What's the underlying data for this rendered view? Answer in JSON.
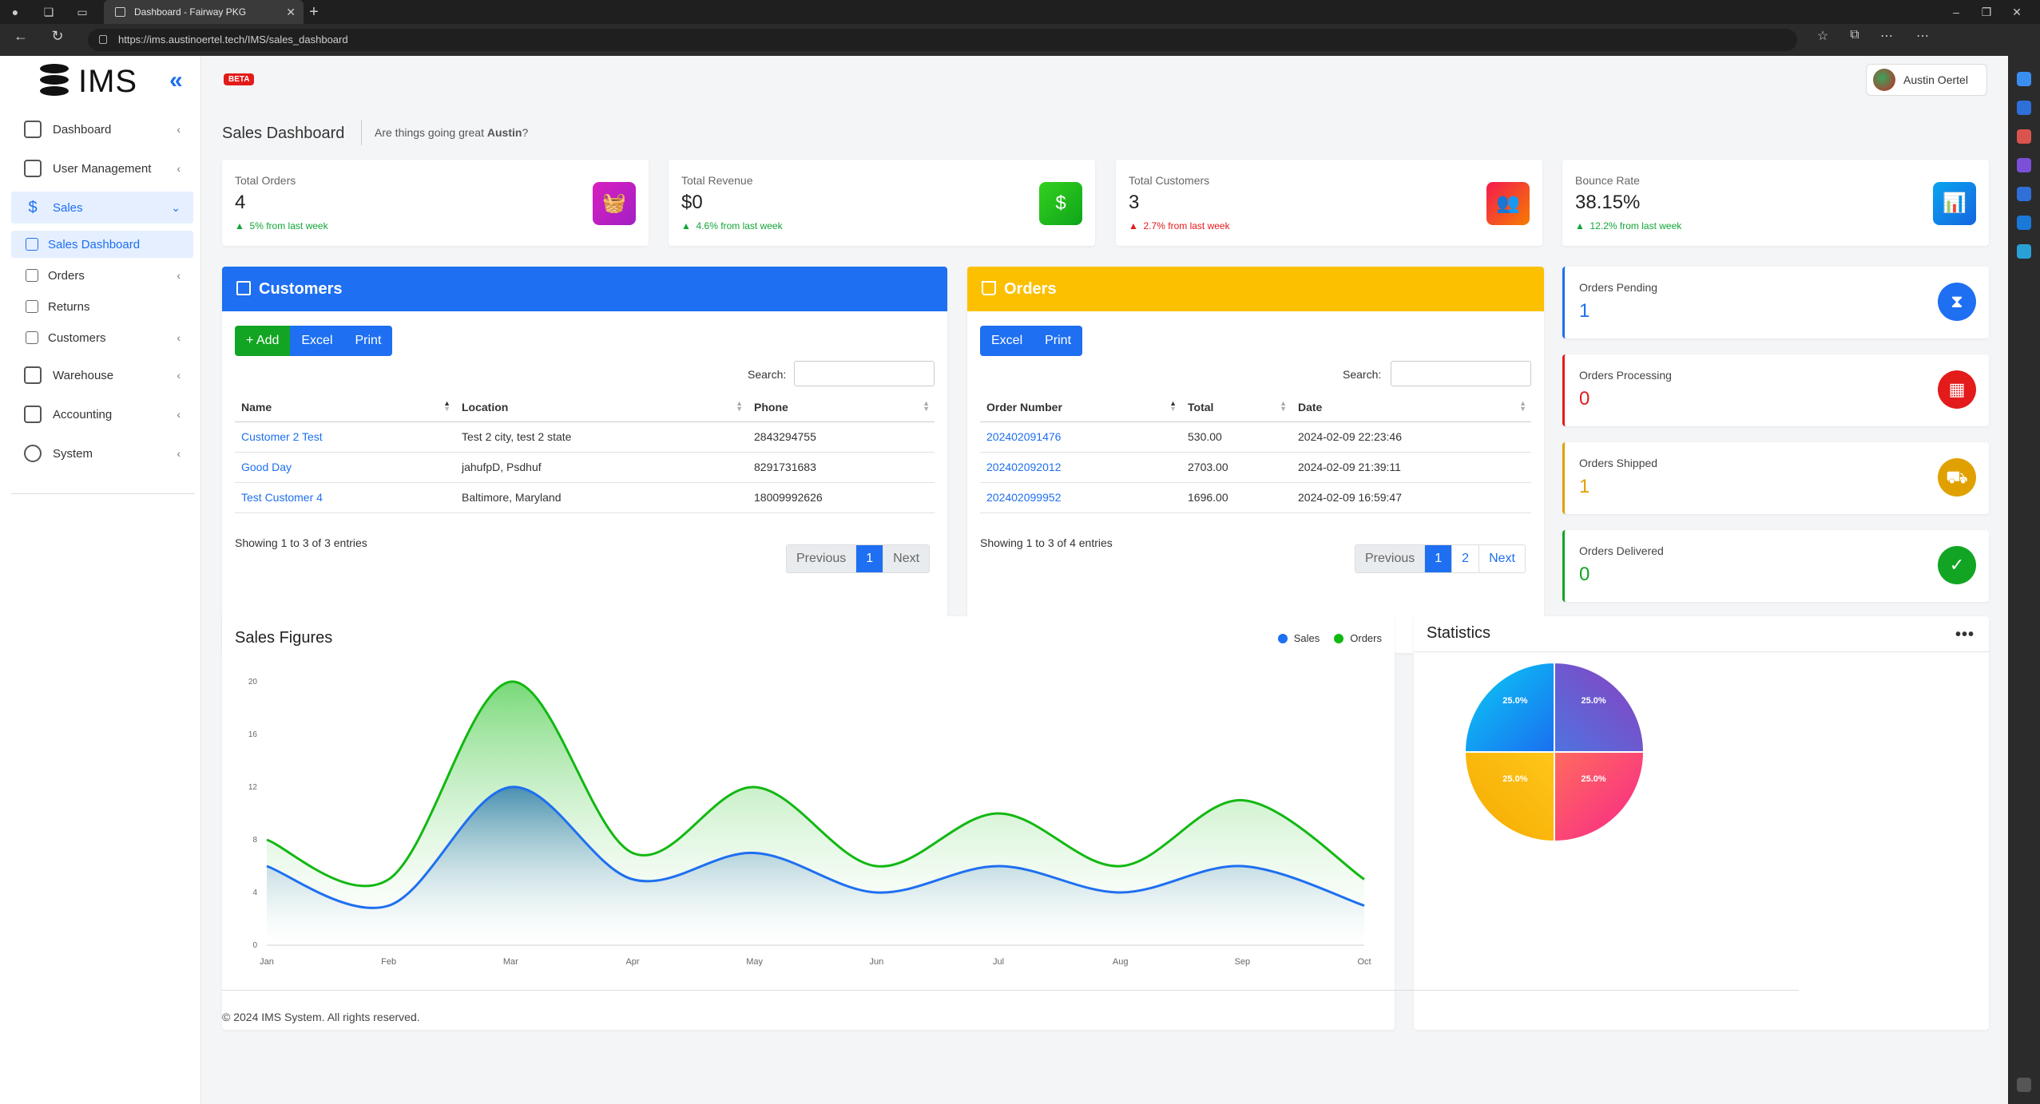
{
  "browser": {
    "tab_title": "Dashboard - Fairway PKG",
    "url": "https://ims.austinoertel.tech/IMS/sales_dashboard"
  },
  "app": {
    "logo": "IMS",
    "beta": "BETA",
    "user_name": "Austin Oertel"
  },
  "sidebar": {
    "items": [
      {
        "label": "Dashboard",
        "icon": "home-icon"
      },
      {
        "label": "User Management",
        "icon": "users-icon"
      },
      {
        "label": "Sales",
        "icon": "dollar-icon"
      },
      {
        "label": "Warehouse",
        "icon": "warehouse-icon"
      },
      {
        "label": "Accounting",
        "icon": "calculator-icon"
      },
      {
        "label": "System",
        "icon": "gear-icon"
      }
    ],
    "sales_sub": [
      {
        "label": "Sales Dashboard"
      },
      {
        "label": "Orders"
      },
      {
        "label": "Returns"
      },
      {
        "label": "Customers"
      }
    ]
  },
  "header": {
    "title": "Sales Dashboard",
    "greeting_prefix": "Are things going great ",
    "greeting_name": "Austin",
    "greeting_suffix": "?"
  },
  "stats": [
    {
      "label": "Total Orders",
      "value": "4",
      "change": "5% from last week",
      "trend": "up",
      "color": "#c21fb8",
      "icon": "basket-icon"
    },
    {
      "label": "Total Revenue",
      "value": "$0",
      "change": "4.6% from last week",
      "trend": "up",
      "color": "#1dbb1d",
      "icon": "money-icon"
    },
    {
      "label": "Total Customers",
      "value": "3",
      "change": "2.7% from last week",
      "trend": "up-red",
      "color": "#f5243c",
      "icon": "people-icon"
    },
    {
      "label": "Bounce Rate",
      "value": "38.15%",
      "change": "12.2% from last week",
      "trend": "up",
      "color": "#0d8dec",
      "icon": "bar-chart-icon"
    }
  ],
  "customers": {
    "title": "Customers",
    "buttons": {
      "add": "+ Add",
      "excel": "Excel",
      "print": "Print"
    },
    "search_label": "Search:",
    "columns": [
      "Name",
      "Location",
      "Phone"
    ],
    "rows": [
      [
        "Customer 2 Test",
        "Test 2 city, test 2 state",
        "2843294755"
      ],
      [
        "Good Day",
        "jahufpD, Psdhuf",
        "8291731683"
      ],
      [
        "Test Customer 4",
        "Baltimore, Maryland",
        "18009992626"
      ]
    ],
    "showing": "Showing 1 to 3 of 3 entries",
    "pager": {
      "prev": "Previous",
      "pages": [
        "1"
      ],
      "next": "Next"
    }
  },
  "orders": {
    "title": "Orders",
    "buttons": {
      "excel": "Excel",
      "print": "Print"
    },
    "search_label": "Search:",
    "columns": [
      "Order Number",
      "Total",
      "Date"
    ],
    "rows": [
      [
        "202402091476",
        "530.00",
        "2024-02-09 22:23:46"
      ],
      [
        "202402092012",
        "2703.00",
        "2024-02-09 21:39:11"
      ],
      [
        "202402099952",
        "1696.00",
        "2024-02-09 16:59:47"
      ]
    ],
    "showing": "Showing 1 to 3 of 4 entries",
    "pager": {
      "prev": "Previous",
      "pages": [
        "1",
        "2"
      ],
      "next": "Next"
    }
  },
  "order_status": [
    {
      "label": "Orders Pending",
      "value": "1",
      "color": "#1e6ff1"
    },
    {
      "label": "Orders Processing",
      "value": "0",
      "color": "#e31b1b"
    },
    {
      "label": "Orders Shipped",
      "value": "1",
      "color": "#e0a100"
    },
    {
      "label": "Orders Delivered",
      "value": "0",
      "color": "#12a523"
    }
  ],
  "sales_chart": {
    "title": "Sales Figures",
    "legend": [
      "Sales",
      "Orders"
    ]
  },
  "statistics": {
    "title": "Statistics",
    "menu": "•••"
  },
  "chart_data": [
    {
      "type": "area",
      "title": "Sales Figures",
      "categories": [
        "Jan",
        "Feb",
        "Mar",
        "Apr",
        "May",
        "Jun",
        "Jul",
        "Aug",
        "Sep",
        "Oct"
      ],
      "ylim": [
        0,
        20
      ],
      "yticks": [
        0,
        4,
        8,
        12,
        16,
        20
      ],
      "series": [
        {
          "name": "Sales",
          "color": "#1e6ff1",
          "values": [
            6,
            3,
            12,
            5,
            7,
            4,
            6,
            4,
            6,
            3
          ]
        },
        {
          "name": "Orders",
          "color": "#12b812",
          "values": [
            8,
            5,
            20,
            7,
            12,
            6,
            10,
            6,
            11,
            5
          ]
        }
      ],
      "legend": "top-right"
    },
    {
      "type": "pie",
      "title": "Statistics",
      "labels": [
        "25.0%",
        "25.0%",
        "25.0%",
        "25.0%"
      ],
      "values": [
        25,
        25,
        25,
        25
      ],
      "colors": [
        "#7a45c8",
        "#f0357a",
        "#f5b800",
        "#08a4f5"
      ]
    }
  ]
}
